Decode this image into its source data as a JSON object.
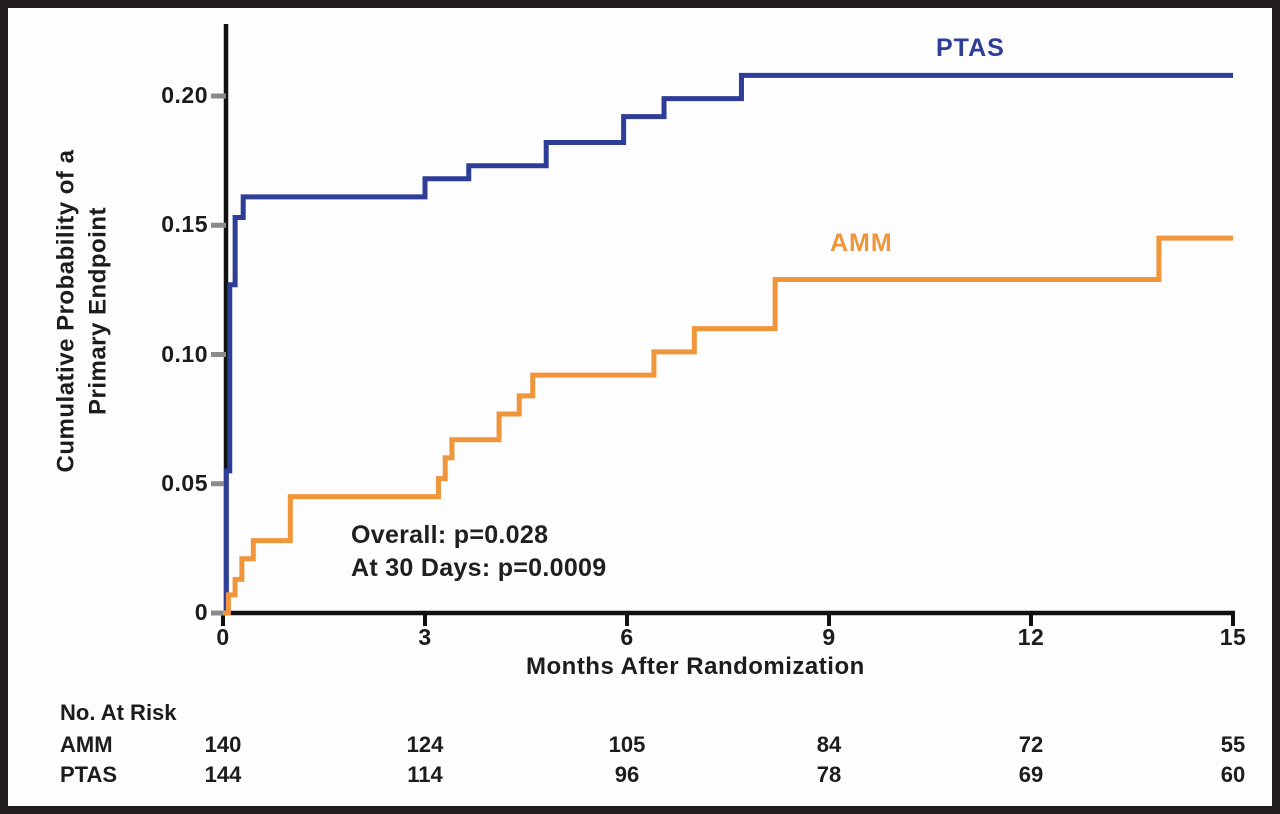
{
  "figure": {
    "background": "#fdfdfd",
    "border_color": "#231f20"
  },
  "chart_data": {
    "type": "line",
    "subtype": "kaplan-meier-cumulative-incidence-steps",
    "title": "",
    "xlabel": "Months After Randomization",
    "ylabel_line1": "Cumulative Probability of a",
    "ylabel_line2": "Primary Endpoint",
    "xlim": [
      0,
      15
    ],
    "ylim": [
      0,
      0.22
    ],
    "grid": false,
    "x_ticks": [
      {
        "label": "0",
        "value": 0
      },
      {
        "label": "3",
        "value": 3
      },
      {
        "label": "6",
        "value": 6
      },
      {
        "label": "9",
        "value": 9
      },
      {
        "label": "12",
        "value": 12
      },
      {
        "label": "15",
        "value": 15
      }
    ],
    "y_ticks": [
      {
        "label": "0.20",
        "value": 0.2
      },
      {
        "label": "0.15",
        "value": 0.15
      },
      {
        "label": "0.10",
        "value": 0.1
      },
      {
        "label": "0.05",
        "value": 0.05
      },
      {
        "label": "0",
        "value": 0
      }
    ],
    "annotations": {
      "line1": "Overall: p=0.028",
      "line2": "At 30 Days: p=0.0009"
    },
    "series": [
      {
        "name": "PTAS",
        "color": "#2e3d96",
        "legend_position": "upper-right-inside",
        "step_points": [
          [
            0.05,
            0.055
          ],
          [
            0.1,
            0.127
          ],
          [
            0.18,
            0.153
          ],
          [
            0.3,
            0.161
          ],
          [
            3.0,
            0.168
          ],
          [
            3.65,
            0.173
          ],
          [
            4.8,
            0.182
          ],
          [
            5.95,
            0.192
          ],
          [
            6.55,
            0.199
          ],
          [
            7.7,
            0.208
          ]
        ],
        "end_month": 15,
        "end_value": 0.208
      },
      {
        "name": "AMM",
        "color": "#f0953a",
        "legend_position": "middle-right-inside",
        "step_points": [
          [
            0.08,
            0.007
          ],
          [
            0.18,
            0.013
          ],
          [
            0.28,
            0.021
          ],
          [
            0.45,
            0.028
          ],
          [
            1.0,
            0.045
          ],
          [
            3.2,
            0.052
          ],
          [
            3.3,
            0.06
          ],
          [
            3.4,
            0.067
          ],
          [
            4.1,
            0.077
          ],
          [
            4.4,
            0.084
          ],
          [
            4.6,
            0.092
          ],
          [
            6.4,
            0.101
          ],
          [
            7.0,
            0.11
          ],
          [
            8.2,
            0.129
          ],
          [
            13.9,
            0.145
          ]
        ],
        "end_month": 15,
        "end_value": 0.145
      }
    ],
    "risk_table": {
      "title": "No. At Risk",
      "columns_months": [
        0,
        3,
        6,
        9,
        12,
        15
      ],
      "rows": [
        {
          "label": "AMM",
          "values": [
            "140",
            "124",
            "105",
            "84",
            "72",
            "55"
          ]
        },
        {
          "label": "PTAS",
          "values": [
            "144",
            "114",
            "96",
            "78",
            "69",
            "60"
          ]
        }
      ]
    }
  }
}
